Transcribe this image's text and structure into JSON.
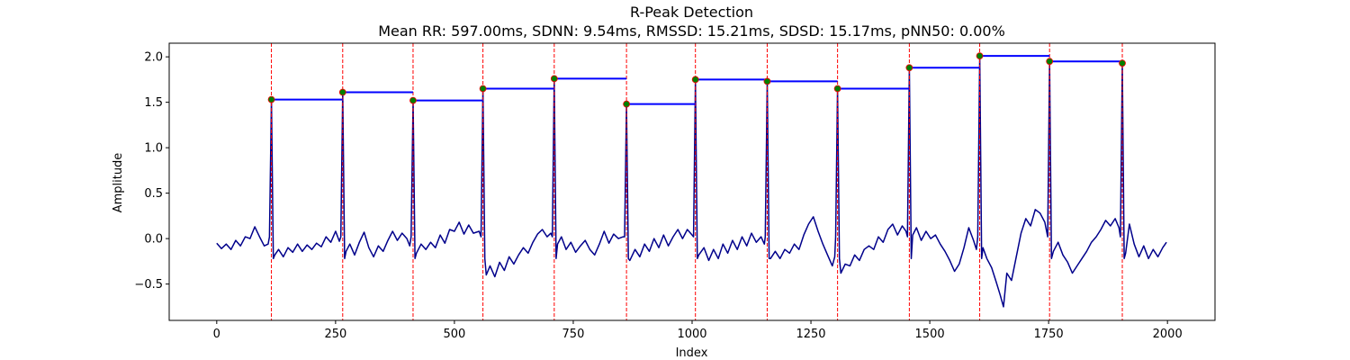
{
  "chart_data": {
    "type": "line",
    "title": "R-Peak Detection",
    "subtitle": "Mean RR: 597.00ms, SDNN: 9.54ms, RMSSD: 15.21ms, SDSD: 15.17ms, pNN50: 0.00%",
    "xlabel": "Index",
    "ylabel": "Amplitude",
    "xlim": [
      -100,
      2100
    ],
    "ylim": [
      -0.9,
      2.15
    ],
    "xticks": [
      0,
      250,
      500,
      750,
      1000,
      1250,
      1500,
      1750,
      2000
    ],
    "yticks": [
      -0.5,
      0.0,
      0.5,
      1.0,
      1.5,
      2.0
    ],
    "grid": false,
    "legend": "none",
    "colors": {
      "signal": "#00008b",
      "peaks": "#008000",
      "peak_edge": "#ff0000",
      "vlines": "#ff0000",
      "rr_segments": "#0000ff"
    },
    "r_peaks": {
      "x": [
        115,
        265,
        413,
        560,
        710,
        862,
        1007,
        1158,
        1306,
        1457,
        1605,
        1752,
        1905
      ],
      "y": [
        1.53,
        1.61,
        1.52,
        1.65,
        1.76,
        1.48,
        1.75,
        1.73,
        1.65,
        1.88,
        2.01,
        1.95,
        1.93
      ]
    },
    "baseline_samples": [
      [
        0,
        -0.05
      ],
      [
        10,
        -0.11
      ],
      [
        20,
        -0.06
      ],
      [
        30,
        -0.12
      ],
      [
        40,
        -0.02
      ],
      [
        50,
        -0.08
      ],
      [
        60,
        0.02
      ],
      [
        70,
        0.0
      ],
      [
        80,
        0.13
      ],
      [
        90,
        0.02
      ],
      [
        100,
        -0.08
      ],
      [
        108,
        -0.06
      ],
      [
        122,
        -0.18
      ],
      [
        130,
        -0.12
      ],
      [
        140,
        -0.2
      ],
      [
        150,
        -0.1
      ],
      [
        160,
        -0.15
      ],
      [
        170,
        -0.06
      ],
      [
        180,
        -0.14
      ],
      [
        190,
        -0.07
      ],
      [
        200,
        -0.12
      ],
      [
        210,
        -0.05
      ],
      [
        220,
        -0.09
      ],
      [
        230,
        0.02
      ],
      [
        240,
        -0.04
      ],
      [
        250,
        0.08
      ],
      [
        258,
        -0.03
      ],
      [
        272,
        -0.14
      ],
      [
        280,
        -0.06
      ],
      [
        290,
        -0.18
      ],
      [
        300,
        -0.04
      ],
      [
        310,
        0.07
      ],
      [
        320,
        -0.1
      ],
      [
        330,
        -0.2
      ],
      [
        340,
        -0.08
      ],
      [
        350,
        -0.14
      ],
      [
        360,
        -0.02
      ],
      [
        370,
        0.08
      ],
      [
        380,
        -0.02
      ],
      [
        390,
        0.06
      ],
      [
        400,
        0.0
      ],
      [
        406,
        -0.08
      ],
      [
        420,
        -0.16
      ],
      [
        430,
        -0.06
      ],
      [
        440,
        -0.12
      ],
      [
        450,
        -0.04
      ],
      [
        460,
        -0.1
      ],
      [
        470,
        0.04
      ],
      [
        480,
        -0.05
      ],
      [
        490,
        0.1
      ],
      [
        500,
        0.08
      ],
      [
        510,
        0.18
      ],
      [
        520,
        0.05
      ],
      [
        530,
        0.15
      ],
      [
        540,
        0.06
      ],
      [
        552,
        0.08
      ],
      [
        567,
        -0.4
      ],
      [
        575,
        -0.3
      ],
      [
        585,
        -0.42
      ],
      [
        595,
        -0.26
      ],
      [
        605,
        -0.35
      ],
      [
        615,
        -0.2
      ],
      [
        625,
        -0.28
      ],
      [
        635,
        -0.18
      ],
      [
        645,
        -0.1
      ],
      [
        655,
        -0.16
      ],
      [
        665,
        -0.04
      ],
      [
        675,
        0.05
      ],
      [
        685,
        0.1
      ],
      [
        695,
        0.02
      ],
      [
        703,
        0.06
      ],
      [
        717,
        -0.06
      ],
      [
        725,
        0.02
      ],
      [
        735,
        -0.12
      ],
      [
        745,
        -0.04
      ],
      [
        755,
        -0.15
      ],
      [
        765,
        -0.08
      ],
      [
        775,
        -0.02
      ],
      [
        785,
        -0.12
      ],
      [
        795,
        -0.18
      ],
      [
        805,
        -0.06
      ],
      [
        815,
        0.08
      ],
      [
        825,
        -0.05
      ],
      [
        835,
        0.05
      ],
      [
        845,
        0.0
      ],
      [
        855,
        0.02
      ],
      [
        869,
        -0.24
      ],
      [
        880,
        -0.12
      ],
      [
        890,
        -0.2
      ],
      [
        900,
        -0.06
      ],
      [
        910,
        -0.14
      ],
      [
        920,
        0.0
      ],
      [
        930,
        -0.1
      ],
      [
        940,
        0.04
      ],
      [
        950,
        -0.08
      ],
      [
        960,
        0.02
      ],
      [
        970,
        0.1
      ],
      [
        980,
        0.0
      ],
      [
        990,
        0.1
      ],
      [
        1000,
        0.04
      ],
      [
        1014,
        -0.18
      ],
      [
        1025,
        -0.1
      ],
      [
        1035,
        -0.24
      ],
      [
        1045,
        -0.12
      ],
      [
        1055,
        -0.22
      ],
      [
        1065,
        -0.06
      ],
      [
        1075,
        -0.16
      ],
      [
        1085,
        -0.02
      ],
      [
        1095,
        -0.12
      ],
      [
        1105,
        0.02
      ],
      [
        1115,
        -0.08
      ],
      [
        1125,
        0.06
      ],
      [
        1135,
        -0.04
      ],
      [
        1145,
        0.02
      ],
      [
        1152,
        -0.06
      ],
      [
        1165,
        -0.22
      ],
      [
        1175,
        -0.14
      ],
      [
        1185,
        -0.22
      ],
      [
        1195,
        -0.12
      ],
      [
        1205,
        -0.16
      ],
      [
        1215,
        -0.06
      ],
      [
        1225,
        -0.12
      ],
      [
        1235,
        0.04
      ],
      [
        1245,
        0.16
      ],
      [
        1255,
        0.24
      ],
      [
        1265,
        0.08
      ],
      [
        1275,
        -0.06
      ],
      [
        1285,
        -0.18
      ],
      [
        1295,
        -0.3
      ],
      [
        1300,
        -0.2
      ],
      [
        1313,
        -0.38
      ],
      [
        1322,
        -0.28
      ],
      [
        1332,
        -0.3
      ],
      [
        1342,
        -0.18
      ],
      [
        1352,
        -0.24
      ],
      [
        1362,
        -0.12
      ],
      [
        1372,
        -0.08
      ],
      [
        1382,
        -0.12
      ],
      [
        1392,
        0.02
      ],
      [
        1402,
        -0.04
      ],
      [
        1412,
        0.1
      ],
      [
        1422,
        0.16
      ],
      [
        1432,
        0.04
      ],
      [
        1442,
        0.14
      ],
      [
        1450,
        0.08
      ],
      [
        1464,
        0.04
      ],
      [
        1472,
        0.12
      ],
      [
        1482,
        -0.02
      ],
      [
        1492,
        0.08
      ],
      [
        1502,
        0.0
      ],
      [
        1512,
        0.04
      ],
      [
        1522,
        -0.06
      ],
      [
        1532,
        -0.14
      ],
      [
        1542,
        -0.24
      ],
      [
        1552,
        -0.36
      ],
      [
        1562,
        -0.28
      ],
      [
        1572,
        -0.1
      ],
      [
        1582,
        0.12
      ],
      [
        1592,
        -0.02
      ],
      [
        1598,
        -0.12
      ],
      [
        1612,
        -0.1
      ],
      [
        1620,
        -0.22
      ],
      [
        1630,
        -0.32
      ],
      [
        1640,
        -0.48
      ],
      [
        1648,
        -0.62
      ],
      [
        1655,
        -0.75
      ],
      [
        1662,
        -0.38
      ],
      [
        1672,
        -0.46
      ],
      [
        1682,
        -0.2
      ],
      [
        1692,
        0.06
      ],
      [
        1702,
        0.22
      ],
      [
        1712,
        0.14
      ],
      [
        1722,
        0.32
      ],
      [
        1732,
        0.28
      ],
      [
        1742,
        0.18
      ],
      [
        1760,
        -0.14
      ],
      [
        1770,
        -0.04
      ],
      [
        1780,
        -0.18
      ],
      [
        1790,
        -0.26
      ],
      [
        1800,
        -0.38
      ],
      [
        1810,
        -0.3
      ],
      [
        1820,
        -0.22
      ],
      [
        1830,
        -0.14
      ],
      [
        1840,
        -0.04
      ],
      [
        1850,
        0.02
      ],
      [
        1860,
        0.1
      ],
      [
        1870,
        0.2
      ],
      [
        1880,
        0.14
      ],
      [
        1890,
        0.22
      ],
      [
        1898,
        0.12
      ],
      [
        1912,
        -0.16
      ],
      [
        1920,
        0.16
      ],
      [
        1930,
        -0.06
      ],
      [
        1940,
        -0.2
      ],
      [
        1950,
        -0.08
      ],
      [
        1960,
        -0.22
      ],
      [
        1970,
        -0.12
      ],
      [
        1980,
        -0.2
      ],
      [
        1990,
        -0.1
      ],
      [
        1998,
        -0.04
      ]
    ]
  }
}
